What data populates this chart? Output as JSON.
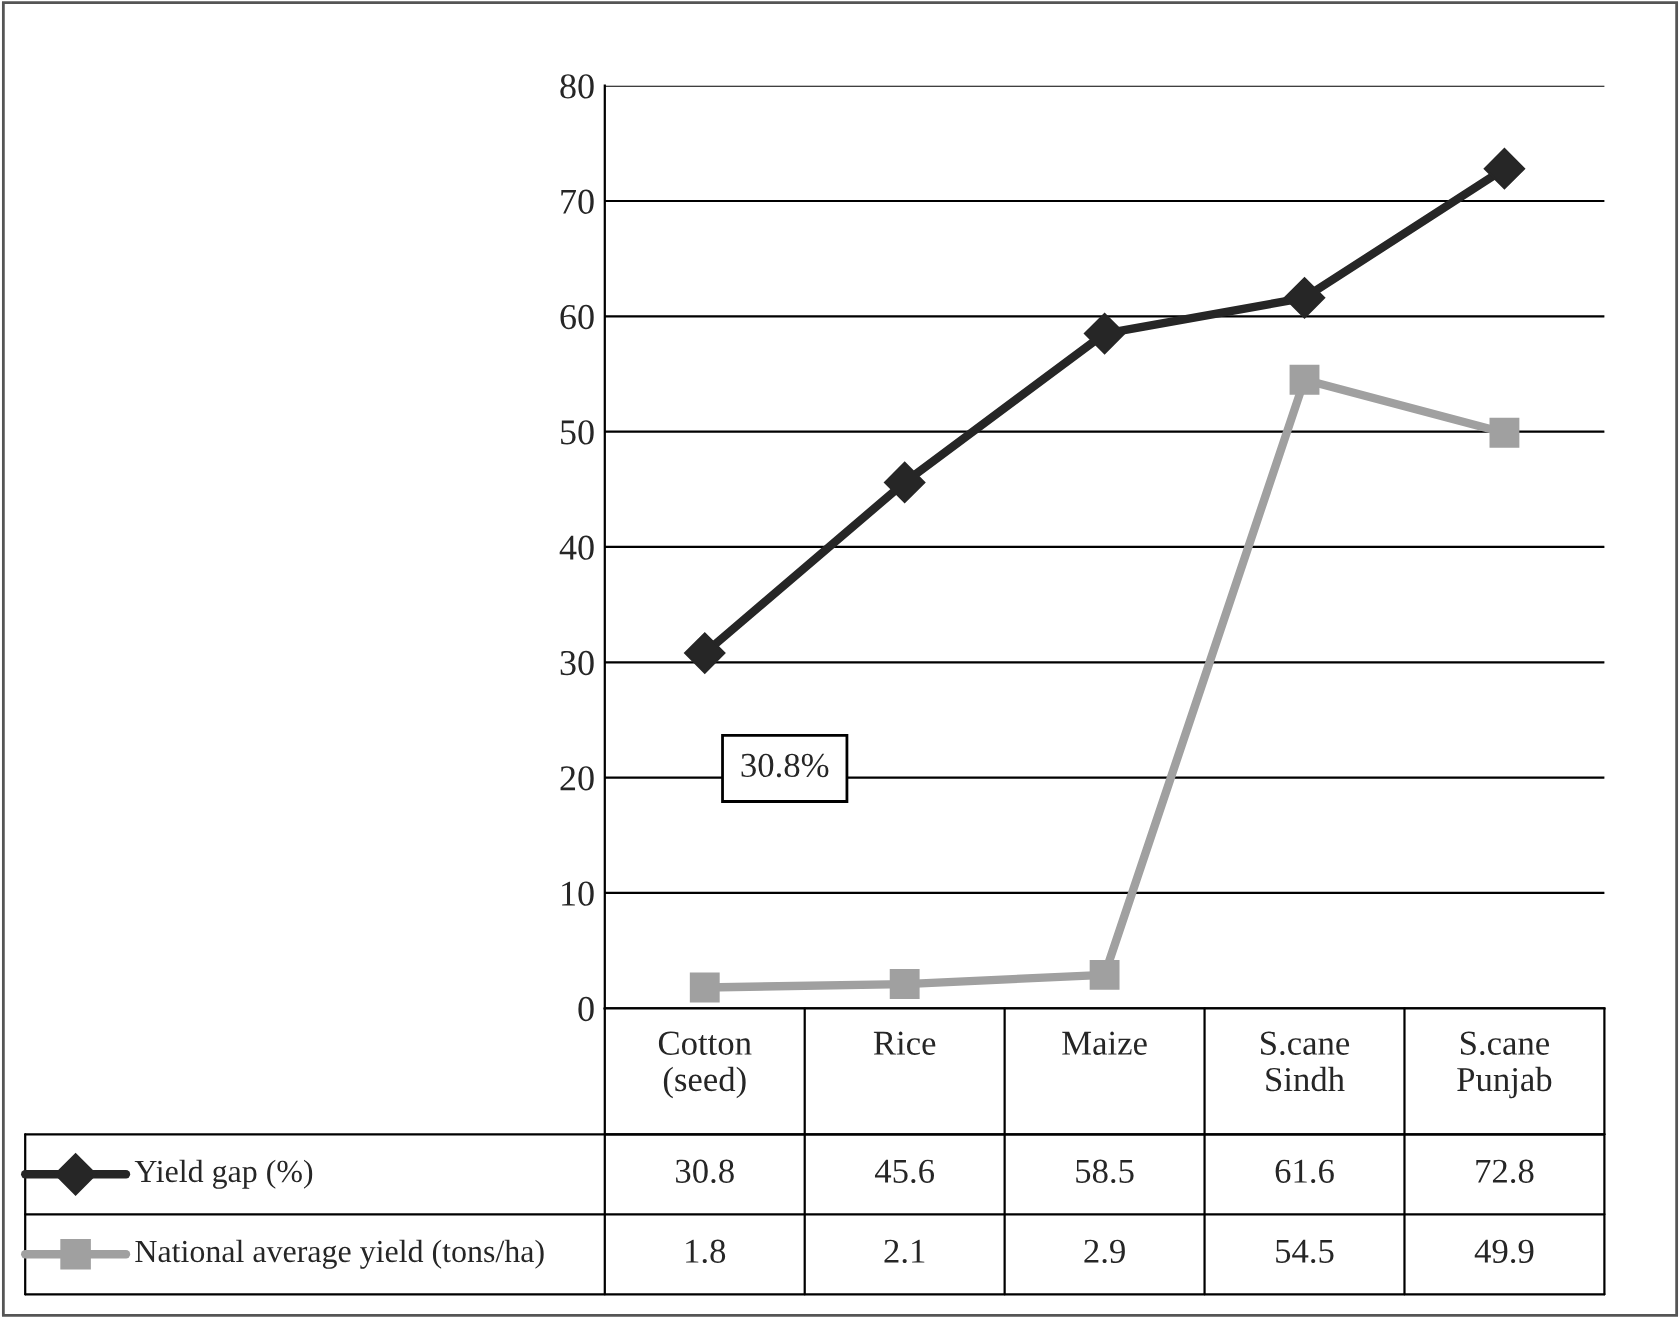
{
  "chart_data": {
    "type": "line",
    "categories": [
      "Cotton\n(seed)",
      "Rice",
      "Maize",
      "S.cane\nSindh",
      "S.cane\nPunjab"
    ],
    "series": [
      {
        "name": "Yield gap (%)",
        "color": "#262626",
        "marker": "diamond",
        "values": [
          30.8,
          45.6,
          58.5,
          61.6,
          72.8
        ]
      },
      {
        "name": "National average yield (tons/ha)",
        "color": "#a0a0a0",
        "marker": "square",
        "values": [
          1.8,
          2.1,
          2.9,
          54.5,
          49.9
        ]
      }
    ],
    "ylim": [
      0,
      80
    ],
    "yticks": [
      0,
      10,
      20,
      30,
      40,
      50,
      60,
      70,
      80
    ],
    "grid": "y",
    "legend": "bottom left",
    "data_labels": true,
    "line_style": "solid",
    "annotations": [
      "30.8%"
    ]
  }
}
